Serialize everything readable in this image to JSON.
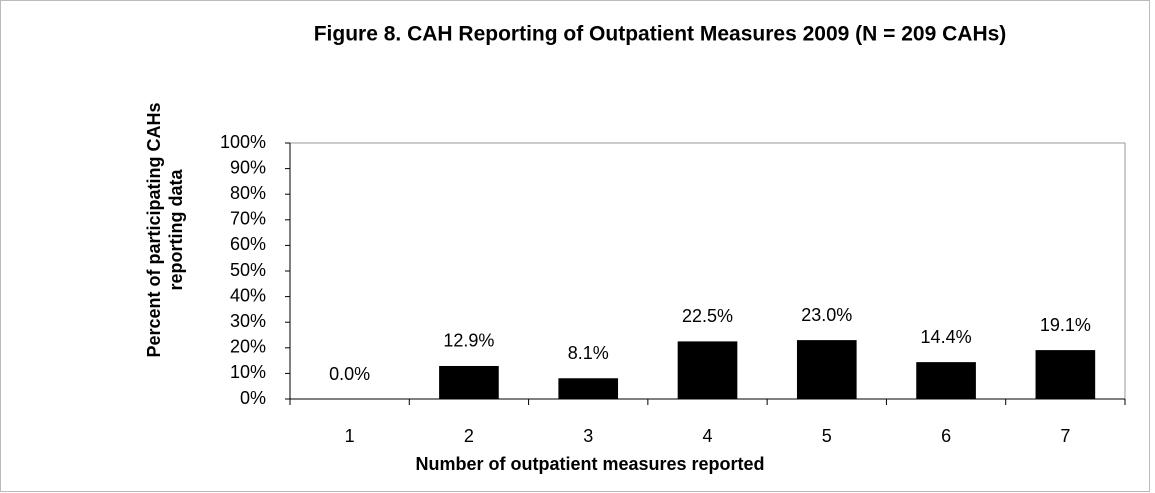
{
  "chart_data": {
    "type": "bar",
    "title": "Figure 8. CAH Reporting of Outpatient Measures 2009 (N = 209 CAHs)",
    "x_label": "Number of outpatient measures reported",
    "y_label": [
      "Percent of participating CAHs",
      "reporting data"
    ],
    "categories": [
      "1",
      "2",
      "3",
      "4",
      "5",
      "6",
      "7"
    ],
    "values": [
      0.0,
      12.9,
      8.1,
      22.5,
      23.0,
      14.4,
      19.1
    ],
    "value_labels": [
      "0.0%",
      "12.9%",
      "8.1%",
      "22.5%",
      "23.0%",
      "14.4%",
      "19.1%"
    ],
    "color": "#000000",
    "ylim": [
      0,
      100
    ],
    "yticks": [
      {
        "value": 0,
        "label": "0%"
      },
      {
        "value": 10,
        "label": "10%"
      },
      {
        "value": 20,
        "label": "20%"
      },
      {
        "value": 30,
        "label": "30%"
      },
      {
        "value": 40,
        "label": "40%"
      },
      {
        "value": 50,
        "label": "50%"
      },
      {
        "value": 60,
        "label": "60%"
      },
      {
        "value": 70,
        "label": "70%"
      },
      {
        "value": 80,
        "label": "80%"
      },
      {
        "value": 90,
        "label": "90%"
      },
      {
        "value": 100,
        "label": "100%"
      }
    ],
    "grid": false
  }
}
